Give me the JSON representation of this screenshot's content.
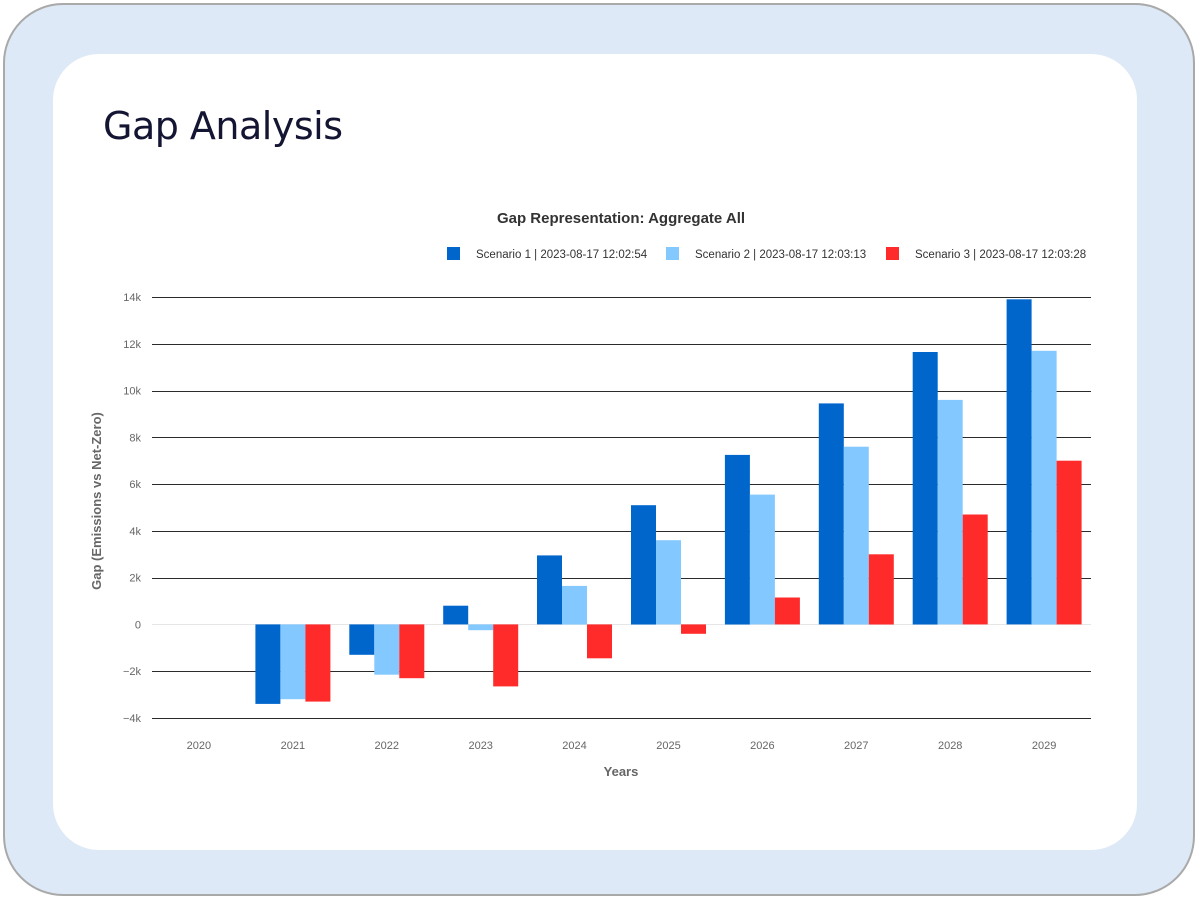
{
  "page": {
    "title": "Gap Analysis"
  },
  "chart_data": {
    "type": "bar",
    "title": "Gap Representation: Aggregate All",
    "xlabel": "Years",
    "ylabel": "Gap (Emissions vs Net-Zero)",
    "categories": [
      "2020",
      "2021",
      "2022",
      "2023",
      "2024",
      "2025",
      "2026",
      "2027",
      "2028",
      "2029"
    ],
    "ylim": [
      -4000,
      14000
    ],
    "yticks": [
      -4000,
      -2000,
      0,
      2000,
      4000,
      6000,
      8000,
      10000,
      12000,
      14000
    ],
    "ytick_labels": [
      "−4k",
      "−2k",
      "0",
      "2k",
      "4k",
      "6k",
      "8k",
      "10k",
      "12k",
      "14k"
    ],
    "grid": true,
    "legend_position": "top-right",
    "series": [
      {
        "name": "Scenario 1 | 2023-08-17 12:02:54",
        "color": "#0066cc",
        "values": [
          0,
          -3400,
          -1300,
          800,
          2950,
          5100,
          7250,
          9450,
          11650,
          13900
        ]
      },
      {
        "name": "Scenario 2 | 2023-08-17 12:03:13",
        "color": "#83c9ff",
        "values": [
          0,
          -3200,
          -2150,
          -250,
          1650,
          3600,
          5550,
          7600,
          9600,
          11700
        ]
      },
      {
        "name": "Scenario 3 | 2023-08-17 12:03:28",
        "color": "#ff2b2b",
        "values": [
          0,
          -3300,
          -2300,
          -2650,
          -1450,
          -400,
          1150,
          3000,
          4700,
          7000
        ]
      }
    ]
  }
}
